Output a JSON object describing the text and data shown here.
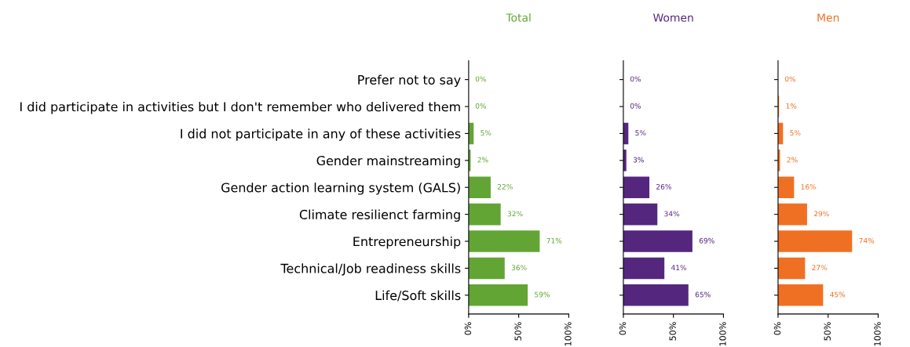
{
  "chart_data": [
    {
      "type": "bar",
      "orientation": "horizontal",
      "title": "Total",
      "categories": [
        "Prefer not to say",
        "I did participate in activities but I don't remember who delivered them",
        "I did not participate in any of these activities",
        "Gender mainstreaming",
        "Gender action learning system (GALS)",
        "Climate resilienct farming",
        "Entrepreneurship",
        "Technical/Job readiness skills",
        "Life/Soft skills"
      ],
      "series": [
        {
          "color": "#62a535",
          "values": [
            0,
            0,
            5,
            2,
            22,
            32,
            71,
            36,
            59
          ],
          "value_labels": [
            "0%",
            "0%",
            "5%",
            "2%",
            "22%",
            "32%",
            "71%",
            "36%",
            "59%"
          ]
        }
      ],
      "xlim": [
        0,
        100
      ],
      "xticks": [
        {
          "value": 0,
          "label": "0%"
        },
        {
          "value": 50,
          "label": "50%"
        },
        {
          "value": 100,
          "label": "100%"
        }
      ],
      "grid": false
    },
    {
      "type": "bar",
      "orientation": "horizontal",
      "title": "Women",
      "categories": [
        null,
        null,
        null,
        null,
        null,
        null,
        null,
        null,
        null
      ],
      "series": [
        {
          "color": "#55267e",
          "values": [
            0,
            0,
            5,
            3,
            26,
            34,
            69,
            41,
            65
          ],
          "value_labels": [
            "0%",
            "0%",
            "5%",
            "3%",
            "26%",
            "34%",
            "69%",
            "41%",
            "65%"
          ]
        }
      ],
      "xlim": [
        0,
        100
      ],
      "xticks": [
        {
          "value": 0,
          "label": "0%"
        },
        {
          "value": 50,
          "label": "50%"
        },
        {
          "value": 100,
          "label": "100%"
        }
      ],
      "tick_labels": "x",
      "grid": false
    },
    {
      "type": "bar",
      "orientation": "horizontal",
      "title": "Men",
      "categories": [
        null,
        null,
        null,
        null,
        null,
        null,
        null,
        null,
        null
      ],
      "series": [
        {
          "color": "#f07023",
          "values": [
            0,
            1,
            5,
            2,
            16,
            29,
            74,
            27,
            45
          ],
          "value_labels": [
            "0%",
            "1%",
            "5%",
            "2%",
            "16%",
            "29%",
            "74%",
            "27%",
            "45%"
          ]
        }
      ],
      "xlim": [
        0,
        100
      ],
      "xticks": [
        {
          "value": 0,
          "label": "0%"
        },
        {
          "value": 50,
          "label": "50%"
        },
        {
          "value": 100,
          "label": "100%"
        }
      ],
      "tick_labels": "x",
      "grid": false
    }
  ]
}
